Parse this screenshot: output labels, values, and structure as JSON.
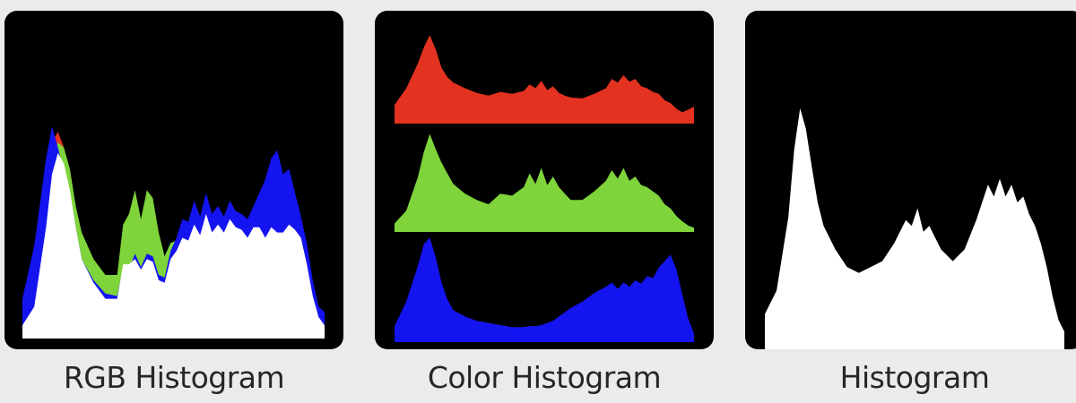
{
  "captions": {
    "rgb": "RGB Histogram",
    "color": "Color Histogram",
    "luminance": "Histogram"
  },
  "colors": {
    "panel_bg": "#000000",
    "page_bg": "#ebebeb",
    "red": "#e3321f",
    "green": "#7ed43a",
    "blue": "#1414f0",
    "white": "#ffffff"
  },
  "chart_data": [
    {
      "type": "area",
      "title": "RGB Histogram",
      "x": [
        0,
        10,
        20,
        25,
        30,
        35,
        40,
        45,
        50,
        60,
        70,
        80,
        85,
        90,
        95,
        100,
        105,
        110,
        115,
        120,
        125,
        130,
        135,
        140,
        145,
        150,
        155,
        160,
        165,
        170,
        175,
        180,
        185,
        190,
        195,
        200,
        205,
        210,
        215,
        220,
        225,
        230,
        235,
        240,
        245,
        250,
        255
      ],
      "xlim": [
        0,
        255
      ],
      "ylim": [
        0,
        1
      ],
      "series": [
        {
          "name": "",
          "color": "red",
          "values": [
            0.12,
            0.2,
            0.55,
            0.74,
            0.78,
            0.72,
            0.62,
            0.48,
            0.36,
            0.26,
            0.2,
            0.21,
            0.35,
            0.33,
            0.36,
            0.3,
            0.36,
            0.35,
            0.26,
            0.24,
            0.33,
            0.35,
            0.4,
            0.38,
            0.44,
            0.4,
            0.5,
            0.42,
            0.45,
            0.41,
            0.47,
            0.44,
            0.43,
            0.4,
            0.44,
            0.44,
            0.39,
            0.46,
            0.43,
            0.44,
            0.48,
            0.45,
            0.41,
            0.3,
            0.18,
            0.1,
            0.08
          ]
        },
        {
          "name": "",
          "color": "green",
          "values": [
            0.06,
            0.15,
            0.45,
            0.66,
            0.74,
            0.72,
            0.64,
            0.5,
            0.4,
            0.3,
            0.24,
            0.24,
            0.43,
            0.47,
            0.56,
            0.45,
            0.56,
            0.53,
            0.4,
            0.31,
            0.36,
            0.37,
            0.43,
            0.4,
            0.47,
            0.43,
            0.53,
            0.45,
            0.47,
            0.43,
            0.49,
            0.46,
            0.44,
            0.42,
            0.45,
            0.45,
            0.4,
            0.46,
            0.44,
            0.45,
            0.48,
            0.45,
            0.41,
            0.3,
            0.17,
            0.09,
            0.06
          ]
        },
        {
          "name": "",
          "color": "blue",
          "values": [
            0.15,
            0.35,
            0.68,
            0.8,
            0.72,
            0.63,
            0.55,
            0.42,
            0.3,
            0.22,
            0.17,
            0.16,
            0.27,
            0.26,
            0.32,
            0.27,
            0.32,
            0.31,
            0.24,
            0.23,
            0.33,
            0.38,
            0.45,
            0.44,
            0.52,
            0.46,
            0.55,
            0.47,
            0.5,
            0.46,
            0.52,
            0.48,
            0.47,
            0.45,
            0.5,
            0.55,
            0.6,
            0.68,
            0.71,
            0.62,
            0.64,
            0.55,
            0.46,
            0.36,
            0.22,
            0.12,
            0.1
          ]
        },
        {
          "name": "",
          "color": "white",
          "values": [
            0.05,
            0.12,
            0.42,
            0.62,
            0.7,
            0.66,
            0.56,
            0.42,
            0.3,
            0.21,
            0.15,
            0.15,
            0.28,
            0.28,
            0.3,
            0.26,
            0.3,
            0.29,
            0.22,
            0.21,
            0.3,
            0.33,
            0.38,
            0.37,
            0.43,
            0.39,
            0.47,
            0.4,
            0.43,
            0.4,
            0.45,
            0.42,
            0.41,
            0.38,
            0.42,
            0.42,
            0.38,
            0.42,
            0.4,
            0.4,
            0.43,
            0.41,
            0.38,
            0.28,
            0.16,
            0.08,
            0.05
          ]
        }
      ]
    },
    {
      "type": "area",
      "title": "Color Histogram",
      "x": [
        0,
        10,
        20,
        25,
        30,
        35,
        40,
        45,
        50,
        60,
        70,
        80,
        90,
        100,
        110,
        115,
        120,
        125,
        130,
        135,
        140,
        145,
        150,
        160,
        170,
        180,
        185,
        190,
        195,
        200,
        205,
        210,
        215,
        220,
        225,
        230,
        235,
        240,
        245,
        250,
        255
      ],
      "xlim": [
        0,
        255
      ],
      "ylim": [
        0,
        1
      ],
      "series": [
        {
          "name": "",
          "color": "red",
          "values": [
            0.2,
            0.38,
            0.65,
            0.82,
            0.95,
            0.8,
            0.6,
            0.5,
            0.44,
            0.38,
            0.33,
            0.3,
            0.34,
            0.32,
            0.35,
            0.42,
            0.38,
            0.46,
            0.36,
            0.4,
            0.33,
            0.3,
            0.28,
            0.27,
            0.32,
            0.38,
            0.48,
            0.44,
            0.52,
            0.45,
            0.48,
            0.4,
            0.38,
            0.34,
            0.32,
            0.25,
            0.22,
            0.16,
            0.12,
            0.15,
            0.18
          ]
        },
        {
          "name": "",
          "color": "green",
          "values": [
            0.08,
            0.2,
            0.52,
            0.75,
            0.92,
            0.78,
            0.65,
            0.55,
            0.45,
            0.36,
            0.3,
            0.26,
            0.36,
            0.34,
            0.42,
            0.55,
            0.45,
            0.6,
            0.44,
            0.52,
            0.42,
            0.36,
            0.3,
            0.3,
            0.38,
            0.48,
            0.58,
            0.5,
            0.6,
            0.48,
            0.52,
            0.44,
            0.42,
            0.38,
            0.34,
            0.26,
            0.22,
            0.15,
            0.1,
            0.06,
            0.04
          ]
        },
        {
          "name": "",
          "color": "blue",
          "values": [
            0.15,
            0.38,
            0.72,
            0.92,
            0.98,
            0.8,
            0.56,
            0.4,
            0.3,
            0.24,
            0.2,
            0.18,
            0.16,
            0.14,
            0.14,
            0.15,
            0.15,
            0.16,
            0.18,
            0.2,
            0.24,
            0.28,
            0.32,
            0.38,
            0.46,
            0.52,
            0.56,
            0.5,
            0.56,
            0.52,
            0.58,
            0.55,
            0.62,
            0.6,
            0.7,
            0.76,
            0.82,
            0.68,
            0.45,
            0.22,
            0.08
          ]
        }
      ]
    },
    {
      "type": "area",
      "title": "Histogram",
      "x": [
        0,
        10,
        20,
        25,
        30,
        35,
        40,
        45,
        50,
        60,
        70,
        80,
        90,
        100,
        110,
        120,
        125,
        130,
        135,
        140,
        145,
        150,
        160,
        170,
        180,
        185,
        190,
        195,
        200,
        205,
        210,
        215,
        220,
        225,
        230,
        235,
        240,
        245,
        250,
        255
      ],
      "xlim": [
        0,
        255
      ],
      "ylim": [
        0,
        1
      ],
      "series": [
        {
          "name": "",
          "color": "white",
          "values": [
            0.12,
            0.2,
            0.45,
            0.68,
            0.82,
            0.75,
            0.62,
            0.5,
            0.42,
            0.34,
            0.28,
            0.26,
            0.28,
            0.3,
            0.36,
            0.44,
            0.42,
            0.48,
            0.4,
            0.42,
            0.38,
            0.34,
            0.3,
            0.34,
            0.44,
            0.5,
            0.56,
            0.52,
            0.58,
            0.52,
            0.56,
            0.5,
            0.52,
            0.46,
            0.42,
            0.36,
            0.28,
            0.18,
            0.1,
            0.06
          ]
        }
      ]
    }
  ]
}
